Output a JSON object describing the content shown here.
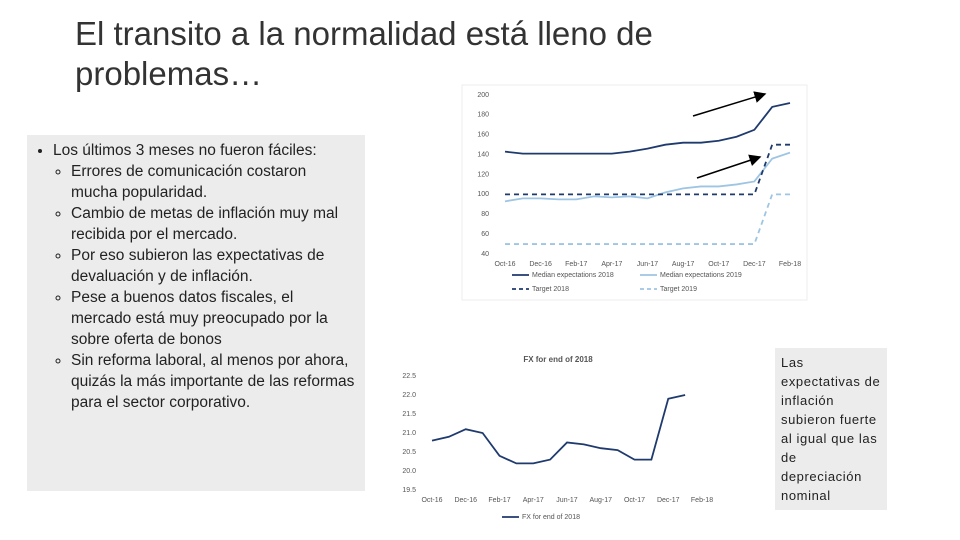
{
  "slide_title": "El transito a la normalidad está lleno de problemas…",
  "bullets": {
    "text": "Los últimos 3 meses no fueron fáciles:",
    "items": [
      "Errores de comunicación costaron mucha popularidad.",
      "Cambio de metas de inflación muy mal recibida por el mercado.",
      "Por eso subieron las expectativas de devaluación y de inflación.",
      "Pese a buenos datos fiscales, el mercado está muy preocupado por la sobre oferta de bonos",
      "Sin reforma laboral, al menos por ahora, quizás la más importante de las reformas para el sector corporativo."
    ]
  },
  "side_note": "Las expectativas de inflación subieron fuerte al igual que las de depreciación nominal",
  "chart_data": [
    {
      "type": "line",
      "categories": [
        "Oct-16",
        null,
        "Dec-16",
        null,
        "Feb-17",
        null,
        "Apr-17",
        null,
        "Jun-17",
        null,
        "Aug-17",
        null,
        "Oct-17",
        null,
        "Dec-17",
        null,
        "Feb-18"
      ],
      "ylim": [
        40,
        200
      ],
      "yticks": [
        40,
        60,
        80,
        100,
        120,
        140,
        160,
        180,
        200
      ],
      "series": [
        {
          "name": "Median expectations 2018",
          "color": "#1f3a6e",
          "line_style": "solid",
          "values": [
            143,
            141,
            141,
            141,
            141,
            141,
            141,
            143,
            146,
            150,
            152,
            152,
            154,
            158,
            165,
            188,
            192
          ]
        },
        {
          "name": "Median expectations 2019",
          "color": "#9ec5e3",
          "line_style": "solid",
          "values": [
            93,
            96,
            96,
            95,
            95,
            98,
            97,
            98,
            96,
            102,
            106,
            108,
            108,
            110,
            113,
            136,
            142
          ]
        },
        {
          "name": "Target 2018",
          "color": "#1f3a6e",
          "line_style": "dashed",
          "values": [
            100,
            100,
            100,
            100,
            100,
            100,
            100,
            100,
            100,
            100,
            100,
            100,
            100,
            100,
            100,
            150,
            150
          ]
        },
        {
          "name": "Target 2019",
          "color": "#9ec5e3",
          "line_style": "dashed",
          "values": [
            50,
            50,
            50,
            50,
            50,
            50,
            50,
            50,
            50,
            50,
            50,
            50,
            50,
            50,
            50,
            100,
            100
          ]
        }
      ]
    },
    {
      "type": "line",
      "title": "FX for end of 2018",
      "categories": [
        "Oct-16",
        null,
        "Dec-16",
        null,
        "Feb-17",
        null,
        "Apr-17",
        null,
        "Jun-17",
        null,
        "Aug-17",
        null,
        "Oct-17",
        null,
        "Dec-17",
        null,
        "Feb-18"
      ],
      "ylim": [
        19.5,
        22.5
      ],
      "yticks": [
        19.5,
        {
          "value": 20,
          "label": "20.0"
        },
        20.5,
        {
          "value": 21,
          "label": "21.0"
        },
        21.5,
        {
          "value": 22,
          "label": "22.0"
        },
        22.5
      ],
      "series": [
        {
          "name": "FX for end of 2018",
          "color": "#1f3a6e",
          "line_style": "solid",
          "values": [
            20.8,
            20.9,
            21.1,
            21.0,
            20.4,
            20.2,
            20.2,
            20.3,
            20.75,
            20.7,
            20.6,
            20.55,
            20.3,
            20.3,
            21.9,
            22.0,
            null
          ]
        }
      ]
    }
  ]
}
